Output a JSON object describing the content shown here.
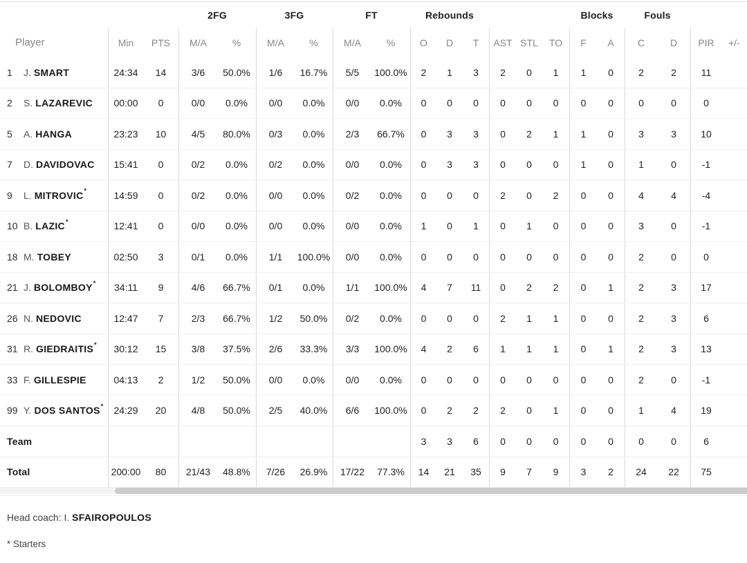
{
  "table": {
    "groups": [
      "2FG",
      "3FG",
      "FT",
      "Rebounds",
      "Blocks",
      "Fouls"
    ],
    "columns": [
      "Player",
      "Min",
      "PTS",
      "M/A",
      "%",
      "M/A",
      "%",
      "M/A",
      "%",
      "O",
      "D",
      "T",
      "AST",
      "STL",
      "TO",
      "F",
      "A",
      "C",
      "D",
      "PIR",
      "+/-"
    ],
    "starter_marker": "*",
    "rows": [
      {
        "num": "1",
        "initial": "J.",
        "name": "SMART",
        "starter": false,
        "cells": [
          "24:34",
          "14",
          "3/6",
          "50.0%",
          "1/6",
          "16.7%",
          "5/5",
          "100.0%",
          "2",
          "1",
          "3",
          "2",
          "0",
          "1",
          "1",
          "0",
          "2",
          "2",
          "11",
          ""
        ]
      },
      {
        "num": "2",
        "initial": "S.",
        "name": "LAZAREVIC",
        "starter": false,
        "cells": [
          "00:00",
          "0",
          "0/0",
          "0.0%",
          "0/0",
          "0.0%",
          "0/0",
          "0.0%",
          "0",
          "0",
          "0",
          "0",
          "0",
          "0",
          "0",
          "0",
          "0",
          "0",
          "0",
          ""
        ]
      },
      {
        "num": "5",
        "initial": "A.",
        "name": "HANGA",
        "starter": false,
        "cells": [
          "23:23",
          "10",
          "4/5",
          "80.0%",
          "0/3",
          "0.0%",
          "2/3",
          "66.7%",
          "0",
          "3",
          "3",
          "0",
          "2",
          "1",
          "1",
          "0",
          "3",
          "3",
          "10",
          ""
        ]
      },
      {
        "num": "7",
        "initial": "D.",
        "name": "DAVIDOVAC",
        "starter": false,
        "cells": [
          "15:41",
          "0",
          "0/2",
          "0.0%",
          "0/2",
          "0.0%",
          "0/0",
          "0.0%",
          "0",
          "3",
          "3",
          "0",
          "0",
          "0",
          "1",
          "0",
          "1",
          "0",
          "-1",
          ""
        ]
      },
      {
        "num": "9",
        "initial": "L.",
        "name": "MITROVIC",
        "starter": true,
        "cells": [
          "14:59",
          "0",
          "0/2",
          "0.0%",
          "0/0",
          "0.0%",
          "0/2",
          "0.0%",
          "0",
          "0",
          "0",
          "2",
          "0",
          "2",
          "0",
          "0",
          "4",
          "4",
          "-4",
          ""
        ]
      },
      {
        "num": "10",
        "initial": "B.",
        "name": "LAZIC",
        "starter": true,
        "cells": [
          "12:41",
          "0",
          "0/0",
          "0.0%",
          "0/0",
          "0.0%",
          "0/0",
          "0.0%",
          "1",
          "0",
          "1",
          "0",
          "1",
          "0",
          "0",
          "0",
          "3",
          "0",
          "-1",
          ""
        ]
      },
      {
        "num": "18",
        "initial": "M.",
        "name": "TOBEY",
        "starter": false,
        "cells": [
          "02:50",
          "3",
          "0/1",
          "0.0%",
          "1/1",
          "100.0%",
          "0/0",
          "0.0%",
          "0",
          "0",
          "0",
          "0",
          "0",
          "0",
          "0",
          "0",
          "2",
          "0",
          "0",
          ""
        ]
      },
      {
        "num": "21",
        "initial": "J.",
        "name": "BOLOMBOY",
        "starter": true,
        "cells": [
          "34:11",
          "9",
          "4/6",
          "66.7%",
          "0/1",
          "0.0%",
          "1/1",
          "100.0%",
          "4",
          "7",
          "11",
          "0",
          "2",
          "2",
          "0",
          "1",
          "2",
          "3",
          "17",
          ""
        ]
      },
      {
        "num": "26",
        "initial": "N.",
        "name": "NEDOVIC",
        "starter": false,
        "cells": [
          "12:47",
          "7",
          "2/3",
          "66.7%",
          "1/2",
          "50.0%",
          "0/2",
          "0.0%",
          "0",
          "0",
          "0",
          "2",
          "1",
          "1",
          "0",
          "0",
          "2",
          "3",
          "6",
          ""
        ]
      },
      {
        "num": "31",
        "initial": "R.",
        "name": "GIEDRAITIS",
        "starter": true,
        "cells": [
          "30:12",
          "15",
          "3/8",
          "37.5%",
          "2/6",
          "33.3%",
          "3/3",
          "100.0%",
          "4",
          "2",
          "6",
          "1",
          "1",
          "1",
          "0",
          "1",
          "2",
          "3",
          "13",
          ""
        ]
      },
      {
        "num": "33",
        "initial": "F.",
        "name": "GILLESPIE",
        "starter": false,
        "cells": [
          "04:13",
          "2",
          "1/2",
          "50.0%",
          "0/0",
          "0.0%",
          "0/0",
          "0.0%",
          "0",
          "0",
          "0",
          "0",
          "0",
          "0",
          "0",
          "0",
          "2",
          "0",
          "-1",
          ""
        ]
      },
      {
        "num": "99",
        "initial": "Y.",
        "name": "DOS SANTOS",
        "starter": true,
        "cells": [
          "24:29",
          "20",
          "4/8",
          "50.0%",
          "2/5",
          "40.0%",
          "6/6",
          "100.0%",
          "0",
          "2",
          "2",
          "2",
          "0",
          "1",
          "0",
          "0",
          "1",
          "4",
          "19",
          ""
        ]
      },
      {
        "label": "Team",
        "cells": [
          "",
          "",
          "",
          "",
          "",
          "",
          "",
          "",
          "3",
          "3",
          "6",
          "0",
          "0",
          "0",
          "0",
          "0",
          "0",
          "0",
          "6",
          ""
        ]
      },
      {
        "label": "Total",
        "cells": [
          "200:00",
          "80",
          "21/43",
          "48.8%",
          "7/26",
          "26.9%",
          "17/22",
          "77.3%",
          "14",
          "21",
          "35",
          "9",
          "7",
          "9",
          "3",
          "2",
          "24",
          "22",
          "75",
          ""
        ]
      }
    ]
  },
  "footer": {
    "head_coach_label": "Head coach: I.",
    "head_coach_name": "SFAIROPOULOS",
    "starters_note": "* Starters"
  },
  "colors": {
    "header_text": "#84868a",
    "data_text": "#202124",
    "column_divider": "#d9d9d9",
    "row_border": "#efefef",
    "scrollbar_thumb": "#cccccc"
  }
}
